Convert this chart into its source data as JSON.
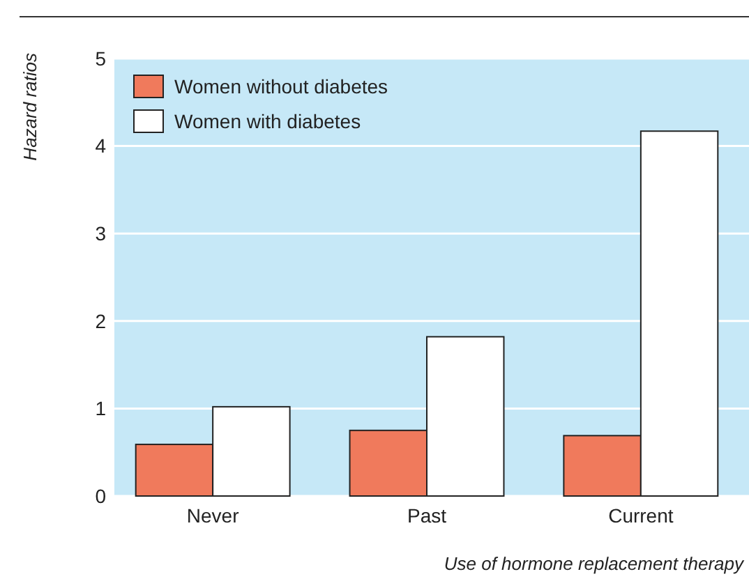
{
  "chart_data": {
    "type": "bar",
    "xlabel": "Use of hormone replacement therapy",
    "ylabel": "Hazard ratios",
    "categories": [
      "Never",
      "Past",
      "Current"
    ],
    "series": [
      {
        "name": "Women without diabetes",
        "color": "#f07a5c",
        "values": [
          0.59,
          0.75,
          0.69
        ]
      },
      {
        "name": "Women with diabetes",
        "color": "#ffffff",
        "values": [
          1.02,
          1.82,
          4.17
        ]
      }
    ],
    "ylim": [
      0,
      5
    ],
    "yticks": [
      0,
      1,
      2,
      3,
      4,
      5
    ],
    "grid": "y",
    "legend": "top left"
  }
}
